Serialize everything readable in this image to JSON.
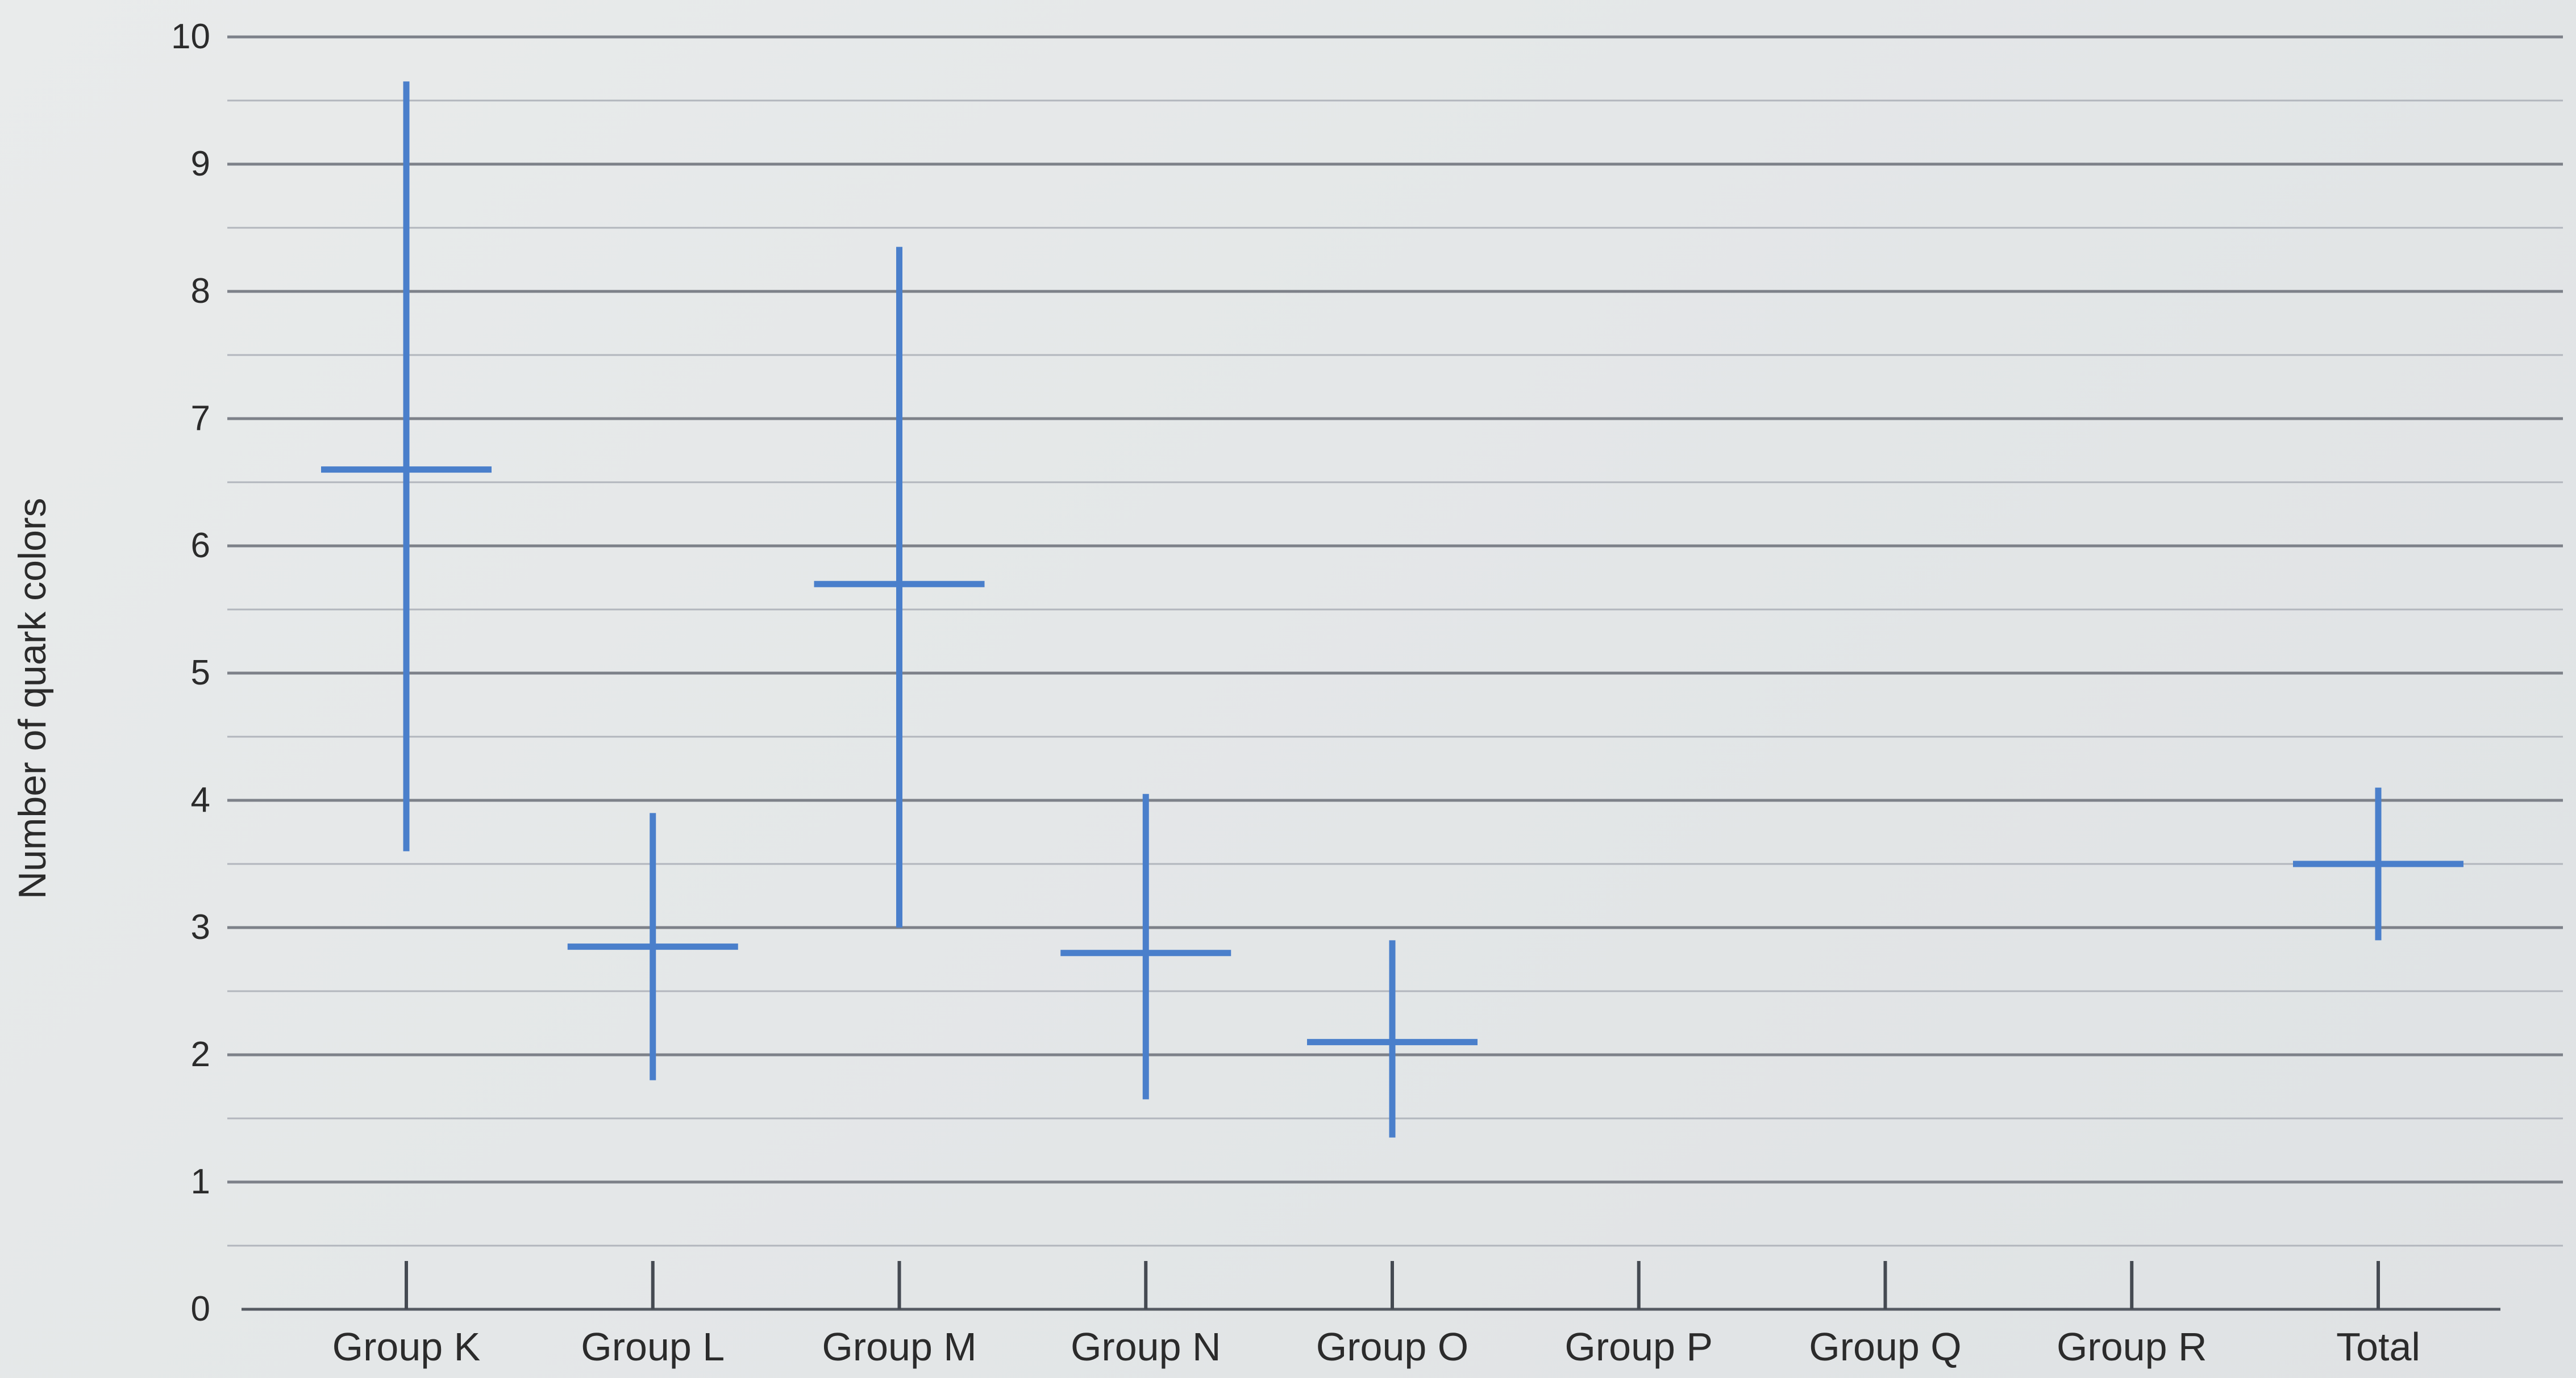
{
  "chart_data": {
    "type": "error-bar",
    "title": "",
    "xlabel": "",
    "ylabel": "Number of quark colors",
    "ylim": [
      0,
      10
    ],
    "yticks": [
      "0",
      "1",
      "2",
      "3",
      "4",
      "5",
      "6",
      "7",
      "8",
      "9",
      "10"
    ],
    "grid": "horizontal lines at integers with fainter sub-lines",
    "legend": "none",
    "color": "#4a7fcb",
    "categories": [
      "Group K",
      "Group L",
      "Group M",
      "Group N",
      "Group O",
      "Group P",
      "Group Q",
      "Group R",
      "Total"
    ],
    "series": [
      {
        "mean": [
          6.6,
          2.85,
          5.7,
          2.8,
          2.1,
          null,
          null,
          null,
          3.5
        ],
        "low": [
          3.6,
          1.8,
          3.0,
          1.65,
          1.35,
          null,
          null,
          null,
          2.9
        ],
        "high": [
          9.65,
          3.9,
          8.35,
          4.05,
          2.9,
          null,
          null,
          null,
          4.1
        ]
      }
    ]
  }
}
